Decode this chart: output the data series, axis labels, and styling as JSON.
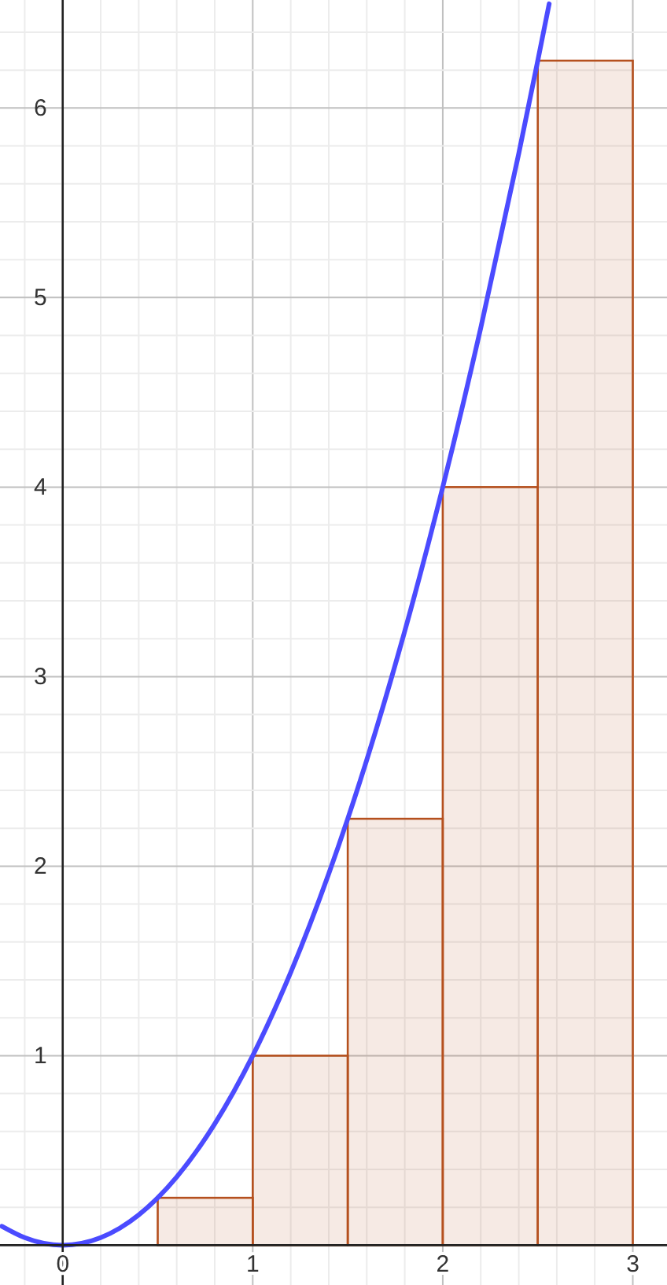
{
  "chart_data": {
    "type": "histogram",
    "xlim": [
      -0.33,
      3.18
    ],
    "ylim": [
      -0.21,
      6.57
    ],
    "grid": true,
    "xticks": [
      {
        "value": 0,
        "label": "0"
      },
      {
        "value": 0.2,
        "label": null
      },
      {
        "value": 0.4,
        "label": null
      },
      {
        "value": 0.6,
        "label": null
      },
      {
        "value": 0.8,
        "label": null
      },
      1,
      {
        "value": 1.2,
        "label": null
      },
      {
        "value": 1.4,
        "label": null
      },
      {
        "value": 1.6,
        "label": null
      },
      {
        "value": 1.8,
        "label": null
      },
      2,
      {
        "value": 2.2,
        "label": null
      },
      {
        "value": 2.4,
        "label": null
      },
      {
        "value": 2.6,
        "label": null
      },
      {
        "value": 2.8,
        "label": null
      },
      3,
      {
        "value": -0.2,
        "label": null
      }
    ],
    "yticks": [
      {
        "value": 0.2,
        "label": null
      },
      {
        "value": 0.4,
        "label": null
      },
      {
        "value": 0.6,
        "label": null
      },
      {
        "value": 0.8,
        "label": null
      },
      1,
      {
        "value": 1.2,
        "label": null
      },
      {
        "value": 1.4,
        "label": null
      },
      {
        "value": 1.6,
        "label": null
      },
      {
        "value": 1.8,
        "label": null
      },
      2,
      {
        "value": 2.2,
        "label": null
      },
      {
        "value": 2.4,
        "label": null
      },
      {
        "value": 2.6,
        "label": null
      },
      {
        "value": 2.8,
        "label": null
      },
      3,
      {
        "value": 3.2,
        "label": null
      },
      {
        "value": 3.4,
        "label": null
      },
      {
        "value": 3.6,
        "label": null
      },
      {
        "value": 3.8,
        "label": null
      },
      4,
      {
        "value": 4.2,
        "label": null
      },
      {
        "value": 4.4,
        "label": null
      },
      {
        "value": 4.6,
        "label": null
      },
      {
        "value": 4.8,
        "label": null
      },
      5,
      {
        "value": 5.2,
        "label": null
      },
      {
        "value": 5.4,
        "label": null
      },
      {
        "value": 5.6,
        "label": null
      },
      {
        "value": 5.8,
        "label": null
      },
      6,
      {
        "value": 6.2,
        "label": null
      },
      {
        "value": 6.4,
        "label": null
      }
    ],
    "series": [
      {
        "color": "#b5501e",
        "bins": [
          0,
          0.5,
          1,
          1.5,
          2,
          2.5,
          3
        ],
        "values": [
          0,
          0.25,
          1,
          2.25,
          4,
          6.25
        ]
      },
      {
        "type": "line",
        "color": "#4b4bff",
        "x": [
          -0.32,
          -0.2,
          -0.1,
          0,
          0.1,
          0.2,
          0.3,
          0.4,
          0.5,
          0.6,
          0.8,
          1,
          1.2,
          1.4,
          1.5,
          1.6,
          1.8,
          2,
          2.2,
          2.4,
          2.5,
          2.56
        ],
        "values": [
          0.1,
          0.04,
          0.01,
          0,
          0.01,
          0.04,
          0.09,
          0.16,
          0.25,
          0.36,
          0.64,
          1,
          1.44,
          1.96,
          2.25,
          2.56,
          3.24,
          4,
          4.84,
          5.76,
          6.25,
          6.55
        ]
      }
    ]
  }
}
